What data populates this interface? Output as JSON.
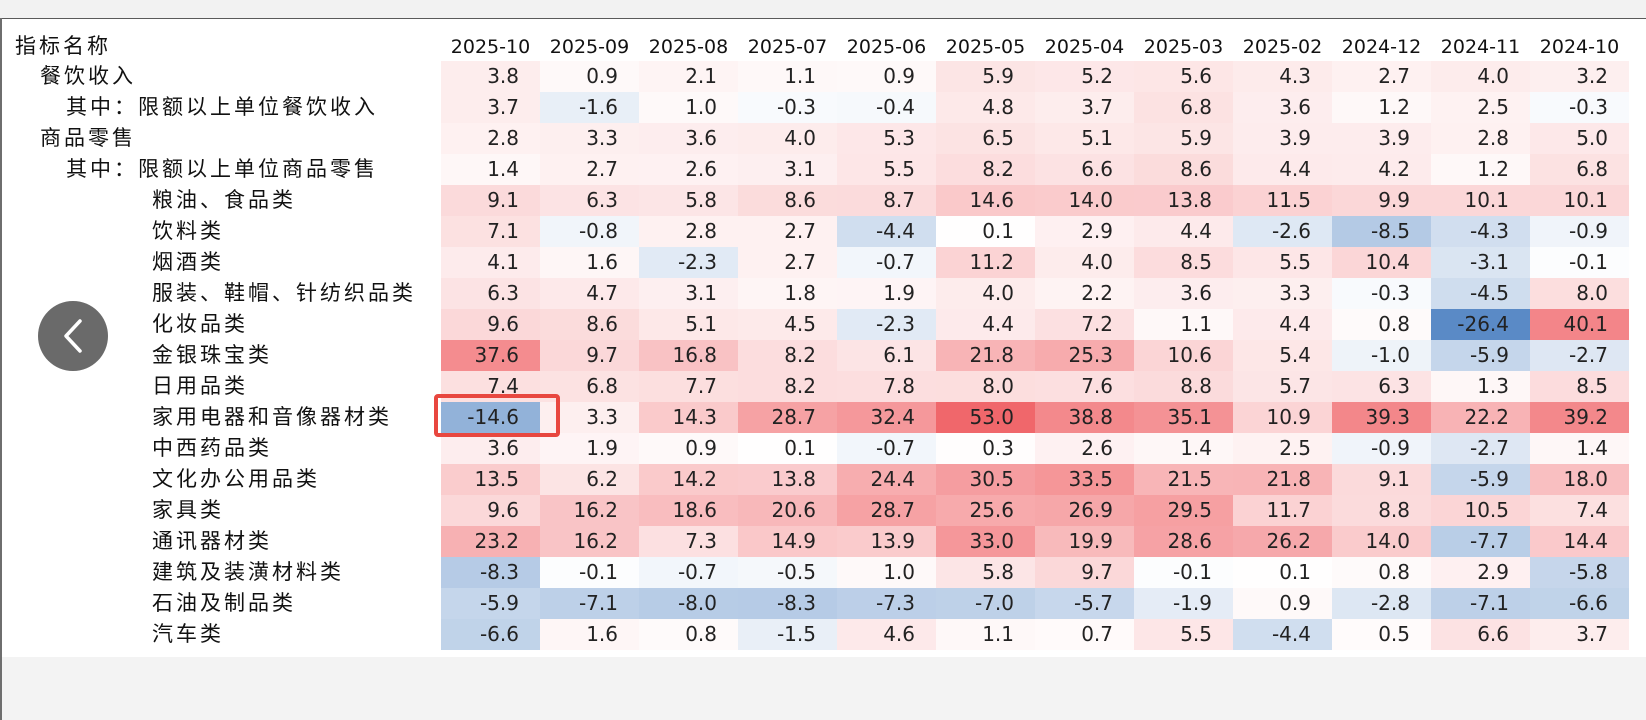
{
  "chart_data": {
    "type": "heatmap",
    "corner_label": "指标名称",
    "columns": [
      "2025-10",
      "2025-09",
      "2025-08",
      "2025-07",
      "2025-06",
      "2025-05",
      "2025-04",
      "2025-03",
      "2025-02",
      "2024-12",
      "2024-11",
      "2024-10"
    ],
    "rows": [
      {
        "name": "餐饮收入",
        "level": 1,
        "values": [
          "3.8",
          "0.9",
          "2.1",
          "1.1",
          "0.9",
          "5.9",
          "5.2",
          "5.6",
          "4.3",
          "2.7",
          "4.0",
          "3.2"
        ]
      },
      {
        "name": "其中：限额以上单位餐饮收入",
        "level": 2,
        "values": [
          "3.7",
          "-1.6",
          "1.0",
          "-0.3",
          "-0.4",
          "4.8",
          "3.7",
          "6.8",
          "3.6",
          "1.2",
          "2.5",
          "-0.3"
        ]
      },
      {
        "name": "商品零售",
        "level": 1,
        "values": [
          "2.8",
          "3.3",
          "3.6",
          "4.0",
          "5.3",
          "6.5",
          "5.1",
          "5.9",
          "3.9",
          "3.9",
          "2.8",
          "5.0"
        ]
      },
      {
        "name": "其中：限额以上单位商品零售",
        "level": 2,
        "values": [
          "1.4",
          "2.7",
          "2.6",
          "3.1",
          "5.5",
          "8.2",
          "6.6",
          "8.6",
          "4.4",
          "4.2",
          "1.2",
          "6.8"
        ]
      },
      {
        "name": "粮油、食品类",
        "level": 3,
        "values": [
          "9.1",
          "6.3",
          "5.8",
          "8.6",
          "8.7",
          "14.6",
          "14.0",
          "13.8",
          "11.5",
          "9.9",
          "10.1",
          "10.1"
        ]
      },
      {
        "name": "饮料类",
        "level": 3,
        "values": [
          "7.1",
          "-0.8",
          "2.8",
          "2.7",
          "-4.4",
          "0.1",
          "2.9",
          "4.4",
          "-2.6",
          "-8.5",
          "-4.3",
          "-0.9"
        ]
      },
      {
        "name": "烟酒类",
        "level": 3,
        "values": [
          "4.1",
          "1.6",
          "-2.3",
          "2.7",
          "-0.7",
          "11.2",
          "4.0",
          "8.5",
          "5.5",
          "10.4",
          "-3.1",
          "-0.1"
        ]
      },
      {
        "name": "服装、鞋帽、针纺织品类",
        "level": 3,
        "values": [
          "6.3",
          "4.7",
          "3.1",
          "1.8",
          "1.9",
          "4.0",
          "2.2",
          "3.6",
          "3.3",
          "-0.3",
          "-4.5",
          "8.0"
        ]
      },
      {
        "name": "化妆品类",
        "level": 3,
        "values": [
          "9.6",
          "8.6",
          "5.1",
          "4.5",
          "-2.3",
          "4.4",
          "7.2",
          "1.1",
          "4.4",
          "0.8",
          "-26.4",
          "40.1"
        ]
      },
      {
        "name": "金银珠宝类",
        "level": 3,
        "values": [
          "37.6",
          "9.7",
          "16.8",
          "8.2",
          "6.1",
          "21.8",
          "25.3",
          "10.6",
          "5.4",
          "-1.0",
          "-5.9",
          "-2.7"
        ]
      },
      {
        "name": "日用品类",
        "level": 3,
        "values": [
          "7.4",
          "6.8",
          "7.7",
          "8.2",
          "7.8",
          "8.0",
          "7.6",
          "8.8",
          "5.7",
          "6.3",
          "1.3",
          "8.5"
        ]
      },
      {
        "name": "家用电器和音像器材类",
        "level": 3,
        "values": [
          "-14.6",
          "3.3",
          "14.3",
          "28.7",
          "32.4",
          "53.0",
          "38.8",
          "35.1",
          "10.9",
          "39.3",
          "22.2",
          "39.2"
        ]
      },
      {
        "name": "中西药品类",
        "level": 3,
        "values": [
          "3.6",
          "1.9",
          "0.9",
          "0.1",
          "-0.7",
          "0.3",
          "2.6",
          "1.4",
          "2.5",
          "-0.9",
          "-2.7",
          "1.4"
        ]
      },
      {
        "name": "文化办公用品类",
        "level": 3,
        "values": [
          "13.5",
          "6.2",
          "14.2",
          "13.8",
          "24.4",
          "30.5",
          "33.5",
          "21.5",
          "21.8",
          "9.1",
          "-5.9",
          "18.0"
        ]
      },
      {
        "name": "家具类",
        "level": 3,
        "values": [
          "9.6",
          "16.2",
          "18.6",
          "20.6",
          "28.7",
          "25.6",
          "26.9",
          "29.5",
          "11.7",
          "8.8",
          "10.5",
          "7.4"
        ]
      },
      {
        "name": "通讯器材类",
        "level": 3,
        "values": [
          "23.2",
          "16.2",
          "7.3",
          "14.9",
          "13.9",
          "33.0",
          "19.9",
          "28.6",
          "26.2",
          "14.0",
          "-7.7",
          "14.4"
        ]
      },
      {
        "name": "建筑及装潢材料类",
        "level": 3,
        "values": [
          "-8.3",
          "-0.1",
          "-0.7",
          "-0.5",
          "1.0",
          "5.8",
          "9.7",
          "-0.1",
          "0.1",
          "0.8",
          "2.9",
          "-5.8"
        ]
      },
      {
        "name": "石油及制品类",
        "level": 3,
        "values": [
          "-5.9",
          "-7.1",
          "-8.0",
          "-8.3",
          "-7.3",
          "-7.0",
          "-5.7",
          "-1.9",
          "0.9",
          "-2.8",
          "-7.1",
          "-6.6"
        ]
      },
      {
        "name": "汽车类",
        "level": 3,
        "values": [
          "-6.6",
          "1.6",
          "0.8",
          "-1.5",
          "4.6",
          "1.1",
          "0.7",
          "5.5",
          "-4.4",
          "0.5",
          "6.6",
          "3.7"
        ]
      }
    ],
    "highlighted_cell": {
      "row": "家用电器和音像器材类",
      "column": "2025-10",
      "value": "-14.6"
    }
  },
  "colors": {
    "positive": "#f0676b",
    "negative": "#5a8ac6",
    "neutral": "#ffffff",
    "highlight_border": "#e8473f"
  },
  "nav": {
    "back_icon": "chevron-left-icon"
  }
}
